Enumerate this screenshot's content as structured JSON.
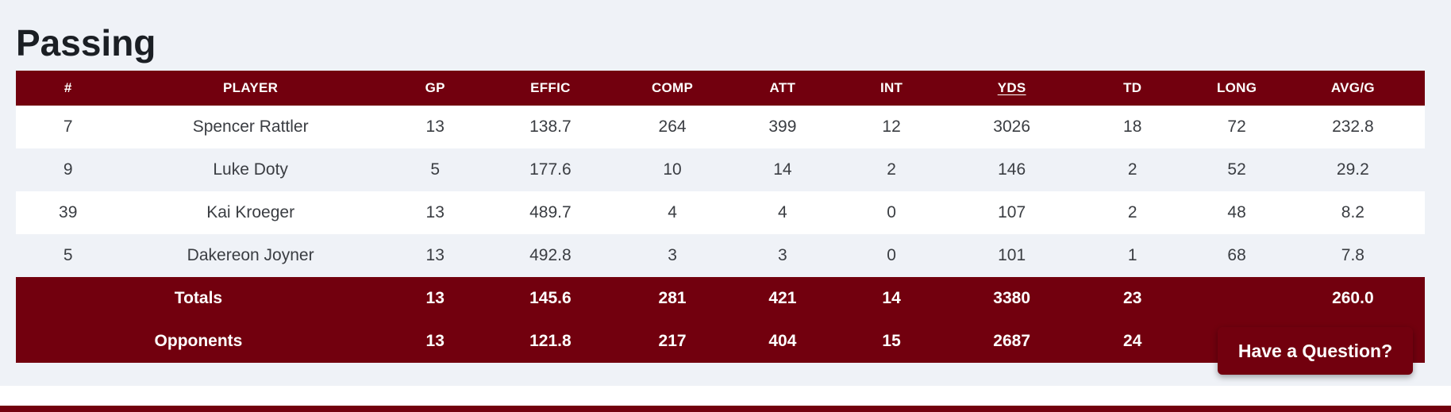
{
  "section": {
    "title": "Passing"
  },
  "table": {
    "columns": [
      "#",
      "PLAYER",
      "GP",
      "EFFIC",
      "COMP",
      "ATT",
      "INT",
      "YDS",
      "TD",
      "LONG",
      "AVG/G"
    ],
    "sorted_column": "YDS",
    "rows": [
      {
        "number": "7",
        "player": "Spencer Rattler",
        "gp": "13",
        "effic": "138.7",
        "comp": "264",
        "att": "399",
        "int": "12",
        "yds": "3026",
        "td": "18",
        "long": "72",
        "avg_g": "232.8"
      },
      {
        "number": "9",
        "player": "Luke Doty",
        "gp": "5",
        "effic": "177.6",
        "comp": "10",
        "att": "14",
        "int": "2",
        "yds": "146",
        "td": "2",
        "long": "52",
        "avg_g": "29.2"
      },
      {
        "number": "39",
        "player": "Kai Kroeger",
        "gp": "13",
        "effic": "489.7",
        "comp": "4",
        "att": "4",
        "int": "0",
        "yds": "107",
        "td": "2",
        "long": "48",
        "avg_g": "8.2"
      },
      {
        "number": "5",
        "player": "Dakereon Joyner",
        "gp": "13",
        "effic": "492.8",
        "comp": "3",
        "att": "3",
        "int": "0",
        "yds": "101",
        "td": "1",
        "long": "68",
        "avg_g": "7.8"
      }
    ],
    "totals": {
      "label": "Totals",
      "gp": "13",
      "effic": "145.6",
      "comp": "281",
      "att": "421",
      "int": "14",
      "yds": "3380",
      "td": "23",
      "long": "",
      "avg_g": "260.0"
    },
    "opponents": {
      "label": "Opponents",
      "gp": "13",
      "effic": "121.8",
      "comp": "217",
      "att": "404",
      "int": "15",
      "yds": "2687",
      "td": "24",
      "long": "",
      "avg_g": ""
    }
  },
  "help_button": {
    "label": "Have a Question?"
  },
  "colors": {
    "brand": "#72000e",
    "background": "#eff2f7",
    "row_alt": "#ffffff",
    "text": "#3a3d42"
  }
}
